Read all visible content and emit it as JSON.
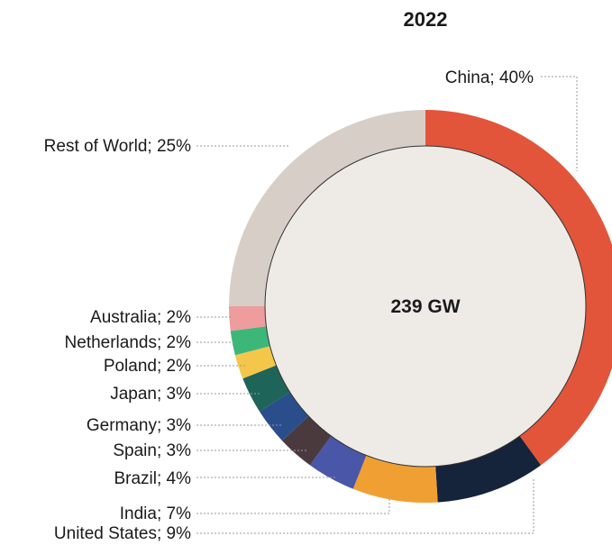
{
  "chart_data": {
    "type": "pie",
    "title": "2022",
    "center_label": "239 GW",
    "slices": [
      {
        "name": "China",
        "value": 40,
        "label": "China; 40%",
        "color": "#E2553A"
      },
      {
        "name": "United States",
        "value": 9,
        "label": "United States; 9%",
        "color": "#15233B"
      },
      {
        "name": "India",
        "value": 7,
        "label": "India; 7%",
        "color": "#F0A032"
      },
      {
        "name": "Brazil",
        "value": 4,
        "label": "Brazil; 4%",
        "color": "#4A56A8"
      },
      {
        "name": "Spain",
        "value": 3,
        "label": "Spain; 3%",
        "color": "#4A3A3E"
      },
      {
        "name": "Germany",
        "value": 3,
        "label": "Germany; 3%",
        "color": "#2A4E8C"
      },
      {
        "name": "Japan",
        "value": 3,
        "label": "Japan; 3%",
        "color": "#1F6458"
      },
      {
        "name": "Poland",
        "value": 2,
        "label": "Poland; 2%",
        "color": "#F4C64A"
      },
      {
        "name": "Netherlands",
        "value": 2,
        "label": "Netherlands; 2%",
        "color": "#3DB779"
      },
      {
        "name": "Australia",
        "value": 2,
        "label": "Australia; 2%",
        "color": "#EE9C9E"
      },
      {
        "name": "Rest of World",
        "value": 25,
        "label": "Rest of World; 25%",
        "color": "#D7CFC7"
      }
    ],
    "inner_color": "#EEEBE7"
  }
}
